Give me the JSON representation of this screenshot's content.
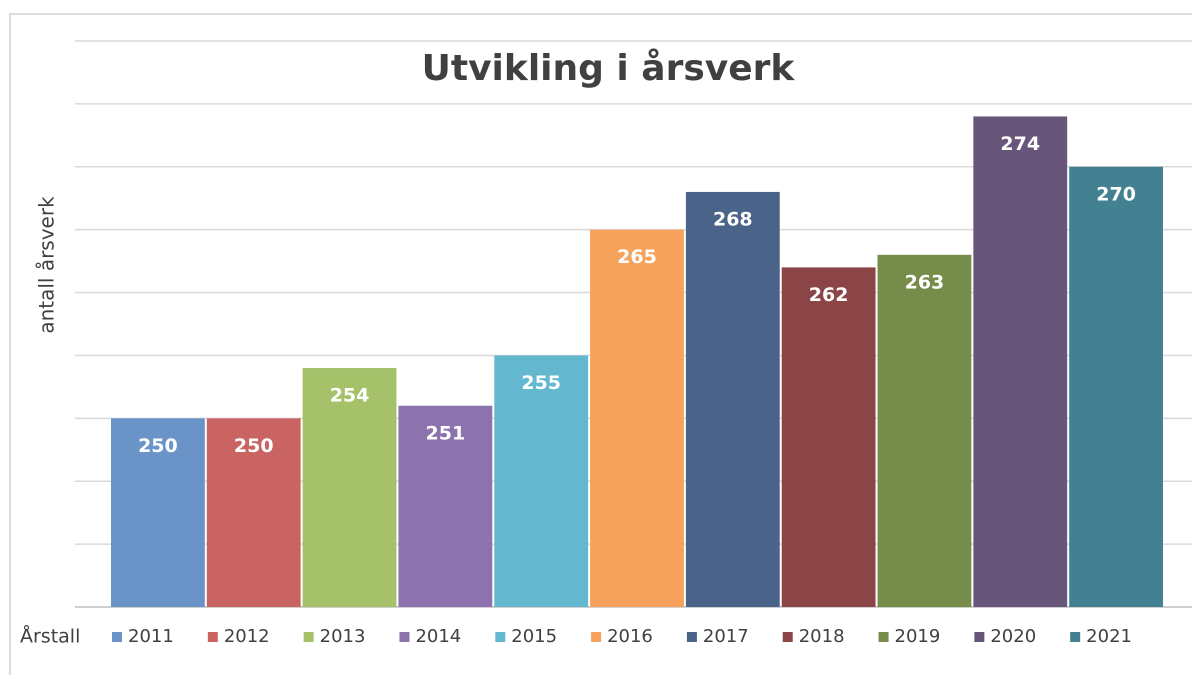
{
  "chart_data": {
    "type": "bar",
    "title": "Utvikling i årsverk",
    "ylabel": "antall årsverk",
    "legend_title": "Årstall",
    "series": [
      {
        "name": "2011",
        "color": "#6a93c8",
        "values": [
          250
        ]
      },
      {
        "name": "2012",
        "color": "#c96463",
        "values": [
          250
        ]
      },
      {
        "name": "2013",
        "color": "#a5c26b",
        "values": [
          254
        ]
      },
      {
        "name": "2014",
        "color": "#8d73ad",
        "values": [
          251
        ]
      },
      {
        "name": "2015",
        "color": "#63b8cf",
        "values": [
          255
        ]
      },
      {
        "name": "2016",
        "color": "#f6a25d",
        "values": [
          265
        ]
      },
      {
        "name": "2017",
        "color": "#4a6489",
        "values": [
          268
        ]
      },
      {
        "name": "2018",
        "color": "#8b4547",
        "values": [
          262
        ]
      },
      {
        "name": "2019",
        "color": "#768c4a",
        "values": [
          263
        ]
      },
      {
        "name": "2020",
        "color": "#67557a",
        "values": [
          274
        ]
      },
      {
        "name": "2021",
        "color": "#438192",
        "values": [
          270
        ]
      }
    ],
    "ylim": [
      235,
      280
    ],
    "yticks": [
      235,
      240,
      245,
      250,
      255,
      260,
      265,
      270,
      275,
      280
    ],
    "ytick_labels": false,
    "grid": true,
    "legend": "bottom"
  }
}
